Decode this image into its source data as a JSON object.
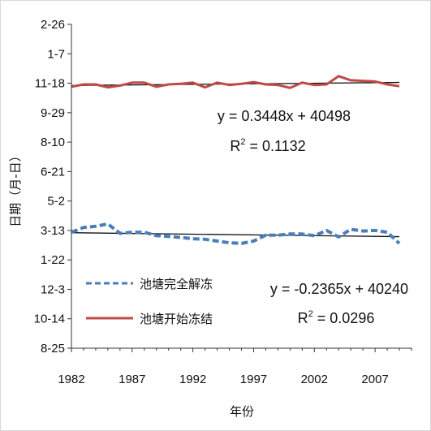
{
  "chart_data": {
    "type": "line",
    "xlabel": "年份",
    "ylabel": "日期（月-日）",
    "x": [
      1982,
      1983,
      1984,
      1985,
      1986,
      1987,
      1988,
      1989,
      1990,
      1991,
      1992,
      1993,
      1994,
      1995,
      1996,
      1997,
      1998,
      1999,
      2000,
      2001,
      2002,
      2003,
      2004,
      2005,
      2006,
      2007,
      2008,
      2009
    ],
    "x_ticks": [
      1982,
      1987,
      1992,
      1997,
      2002,
      2007
    ],
    "xlim": [
      1982,
      2010
    ],
    "y_ticks": [
      "8-25",
      "10-14",
      "12-3",
      "1-22",
      "3-13",
      "5-2",
      "6-21",
      "8-10",
      "9-29",
      "11-18",
      "1-7",
      "2-26"
    ],
    "ylim_serial": [
      40415,
      40965
    ],
    "series": [
      {
        "name": "池塘完全解冻",
        "style": "dashed",
        "color": "#4a7ebb",
        "values": [
          40612,
          40620,
          40622,
          40626,
          40610,
          40612,
          40612,
          40606,
          40605,
          40603,
          40601,
          40600,
          40597,
          40594,
          40593,
          40597,
          40607,
          40607,
          40609,
          40609,
          40606,
          40615,
          40604,
          40617,
          40614,
          40615,
          40612,
          40593
        ],
        "trendline": {
          "equation": "y = -0.2365x + 40240",
          "r2_label": "R",
          "r2_value": " = 0.0296",
          "slope": -0.2365,
          "intercept": 40240
        }
      },
      {
        "name": "池塘开始冻结",
        "style": "solid",
        "color": "#be4b48",
        "values": [
          40859,
          40863,
          40863,
          40858,
          40861,
          40866,
          40866,
          40859,
          40863,
          40864,
          40866,
          40858,
          40866,
          40862,
          40864,
          40867,
          40863,
          40862,
          40857,
          40866,
          40862,
          40863,
          40877,
          40870,
          40869,
          40868,
          40863,
          40860
        ],
        "trendline": {
          "equation": "y = 0.3448x + 40498",
          "r2_label": "R",
          "r2_value": " = 0.1132",
          "slope": 0.3448,
          "intercept": 40498
        }
      }
    ]
  }
}
